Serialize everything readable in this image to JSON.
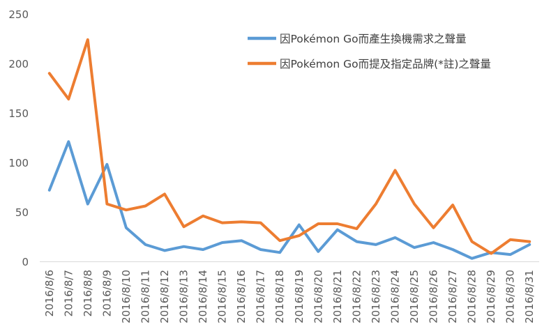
{
  "chart_data": {
    "type": "line",
    "categories": [
      "2016/8/6",
      "2016/8/7",
      "2016/8/8",
      "2016/8/9",
      "2016/8/10",
      "2016/8/11",
      "2016/8/12",
      "2016/8/13",
      "2016/8/14",
      "2016/8/15",
      "2016/8/16",
      "2016/8/17",
      "2016/8/18",
      "2016/8/19",
      "2016/8/20",
      "2016/8/21",
      "2016/8/22",
      "2016/8/23",
      "2016/8/24",
      "2016/8/25",
      "2016/8/26",
      "2016/8/27",
      "2016/8/28",
      "2016/8/29",
      "2016/8/30",
      "2016/8/31"
    ],
    "series": [
      {
        "name": "因Pokémon Go而產生換機需求之聲量",
        "color": "#5B9BD5",
        "values": [
          72,
          121,
          58,
          98,
          34,
          17,
          11,
          15,
          12,
          19,
          21,
          12,
          9,
          37,
          10,
          32,
          20,
          17,
          24,
          14,
          19,
          12,
          3,
          9,
          7,
          17
        ]
      },
      {
        "name": "因Pokémon Go而提及指定品牌(*註)之聲量",
        "color": "#ED7D31",
        "values": [
          190,
          164,
          224,
          58,
          52,
          56,
          68,
          35,
          46,
          39,
          40,
          39,
          21,
          26,
          38,
          38,
          33,
          58,
          92,
          58,
          34,
          57,
          20,
          8,
          22,
          20
        ]
      }
    ],
    "yticks": [
      "0",
      "50",
      "100",
      "150",
      "200",
      "250"
    ],
    "ylim": [
      0,
      250
    ],
    "legend_position": "top-right",
    "grid": false
  }
}
